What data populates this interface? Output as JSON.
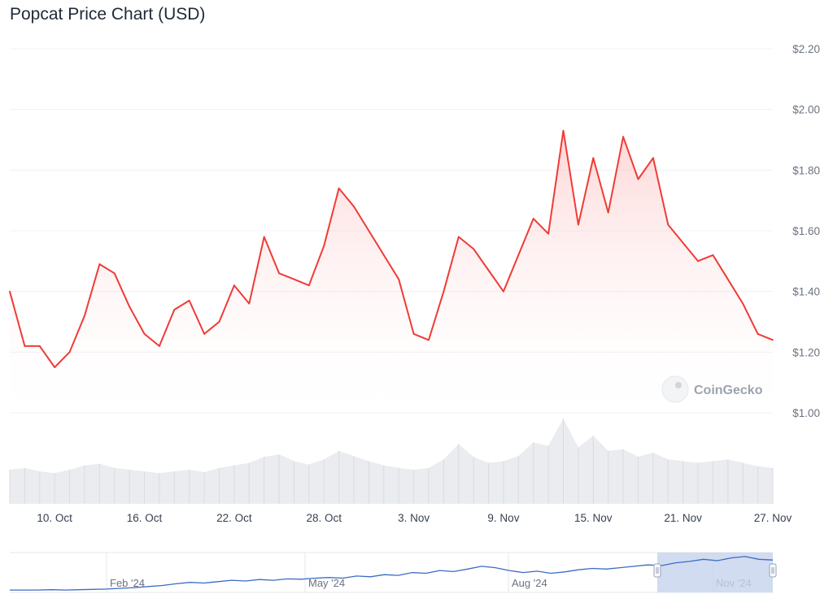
{
  "title": "Popcat Price Chart (USD)",
  "watermark": "CoinGecko",
  "colors": {
    "price_line": "#ef3b36",
    "price_fill_top": "#fca5a5",
    "volume_fill": "#e5e7eb",
    "gridline": "#eef0f3",
    "navigator_line": "#3b6bc4",
    "navigator_window": "#c5d3ee"
  },
  "chart_data": {
    "type": "line",
    "series_type": "area",
    "yaxis": {
      "position": "right",
      "ticks": [
        "$1.00",
        "$1.20",
        "$1.40",
        "$1.60",
        "$1.80",
        "$2.00",
        "$2.20"
      ],
      "range": [
        1.0,
        2.2
      ]
    },
    "xaxis": {
      "ticks": [
        "10. Oct",
        "16. Oct",
        "22. Oct",
        "28. Oct",
        "3. Nov",
        "9. Nov",
        "15. Nov",
        "21. Nov",
        "27. Nov"
      ],
      "range": [
        "2024-10-07",
        "2024-11-27"
      ]
    },
    "grid": true,
    "series": [
      {
        "x": [
          "2024-10-07",
          "2024-10-08",
          "2024-10-09",
          "2024-10-10",
          "2024-10-11",
          "2024-10-12",
          "2024-10-13",
          "2024-10-14",
          "2024-10-15",
          "2024-10-16",
          "2024-10-17",
          "2024-10-18",
          "2024-10-19",
          "2024-10-20",
          "2024-10-21",
          "2024-10-22",
          "2024-10-23",
          "2024-10-24",
          "2024-10-25",
          "2024-10-26",
          "2024-10-27",
          "2024-10-28",
          "2024-10-29",
          "2024-10-30",
          "2024-10-31",
          "2024-11-01",
          "2024-11-02",
          "2024-11-03",
          "2024-11-04",
          "2024-11-05",
          "2024-11-06",
          "2024-11-07",
          "2024-11-08",
          "2024-11-09",
          "2024-11-10",
          "2024-11-11",
          "2024-11-12",
          "2024-11-13",
          "2024-11-14",
          "2024-11-15",
          "2024-11-16",
          "2024-11-17",
          "2024-11-18",
          "2024-11-19",
          "2024-11-20",
          "2024-11-21",
          "2024-11-22",
          "2024-11-23",
          "2024-11-24",
          "2024-11-25",
          "2024-11-26",
          "2024-11-27"
        ],
        "y": [
          1.4,
          1.22,
          1.22,
          1.15,
          1.2,
          1.32,
          1.49,
          1.46,
          1.35,
          1.26,
          1.22,
          1.34,
          1.37,
          1.26,
          1.3,
          1.42,
          1.36,
          1.58,
          1.46,
          1.44,
          1.42,
          1.55,
          1.74,
          1.68,
          1.6,
          1.52,
          1.44,
          1.26,
          1.24,
          1.4,
          1.58,
          1.54,
          1.47,
          1.4,
          1.52,
          1.64,
          1.59,
          1.93,
          1.62,
          1.84,
          1.66,
          1.91,
          1.77,
          1.84,
          1.62,
          1.56,
          1.5,
          1.52,
          1.44,
          1.36,
          1.26,
          1.24
        ]
      }
    ],
    "volume": [
      0.4,
      0.42,
      0.38,
      0.36,
      0.4,
      0.45,
      0.47,
      0.42,
      0.4,
      0.38,
      0.36,
      0.38,
      0.4,
      0.37,
      0.42,
      0.45,
      0.48,
      0.55,
      0.58,
      0.5,
      0.46,
      0.52,
      0.62,
      0.56,
      0.5,
      0.45,
      0.42,
      0.4,
      0.42,
      0.52,
      0.7,
      0.55,
      0.48,
      0.5,
      0.56,
      0.72,
      0.68,
      1.0,
      0.66,
      0.8,
      0.62,
      0.64,
      0.55,
      0.6,
      0.52,
      0.5,
      0.48,
      0.5,
      0.52,
      0.48,
      0.44,
      0.42
    ],
    "navigator": {
      "ticks": [
        "Feb '24",
        "May '24",
        "Aug '24",
        "Nov '24"
      ],
      "values": [
        0.02,
        0.02,
        0.02,
        0.03,
        0.02,
        0.03,
        0.04,
        0.05,
        0.07,
        0.09,
        0.12,
        0.15,
        0.2,
        0.24,
        0.22,
        0.26,
        0.3,
        0.28,
        0.32,
        0.3,
        0.34,
        0.33,
        0.36,
        0.38,
        0.36,
        0.42,
        0.4,
        0.46,
        0.44,
        0.52,
        0.5,
        0.58,
        0.55,
        0.62,
        0.7,
        0.66,
        0.58,
        0.52,
        0.56,
        0.5,
        0.54,
        0.6,
        0.64,
        0.62,
        0.66,
        0.7,
        0.74,
        0.72,
        0.8,
        0.84,
        0.9,
        0.86,
        0.94,
        0.98,
        0.9,
        0.88
      ]
    }
  }
}
